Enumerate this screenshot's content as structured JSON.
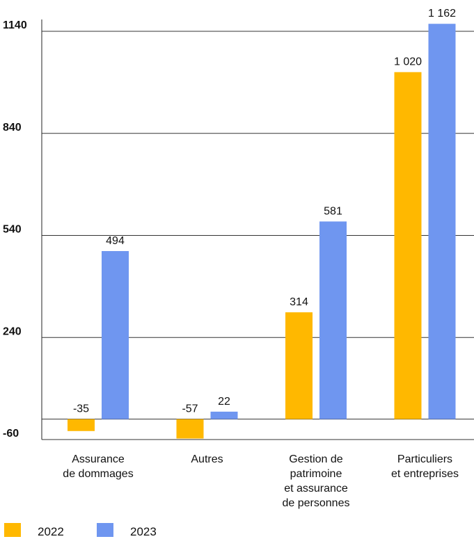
{
  "chart_data": {
    "type": "bar",
    "categories": [
      [
        "Assurance",
        "de dommages"
      ],
      [
        "Autres"
      ],
      [
        "Gestion de",
        "patrimoine",
        "et assurance",
        "de personnes"
      ],
      [
        "Particuliers",
        "et entreprises"
      ]
    ],
    "series": [
      {
        "name": "2022",
        "color": "#FFB800",
        "values": [
          -35,
          -57,
          314,
          1020
        ],
        "labels": [
          "-35",
          "-57",
          "314",
          "1 020"
        ]
      },
      {
        "name": "2023",
        "color": "#6F96F0",
        "values": [
          494,
          22,
          581,
          1162
        ],
        "labels": [
          "494",
          "22",
          "581",
          "1 162"
        ]
      }
    ],
    "yticks": [
      -60,
      240,
      540,
      840,
      1140
    ],
    "ytick_labels": [
      "-60",
      "240",
      "540",
      "840",
      "1140"
    ],
    "ylim": [
      -60,
      1162
    ],
    "grid": true,
    "legend_position": "bottom-left"
  }
}
